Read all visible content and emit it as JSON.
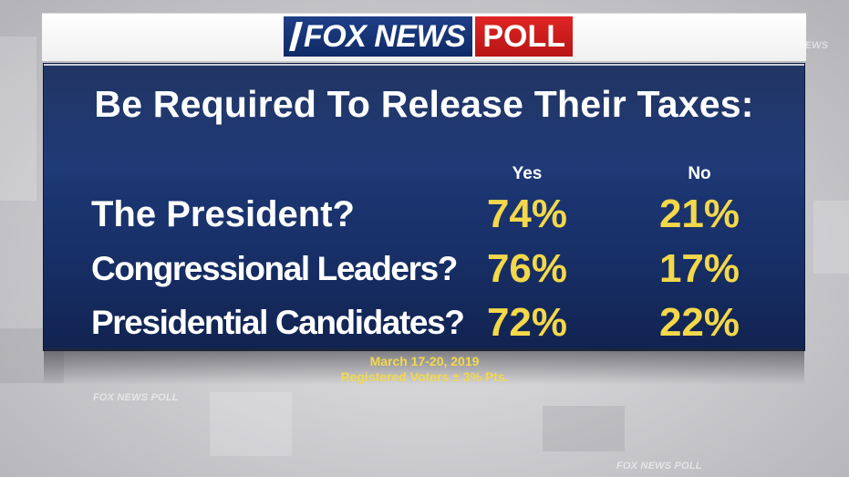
{
  "brand": {
    "logo_main": "FOX NEWS",
    "logo_poll": "POLL",
    "ghost_logo_1": "FOX NEWS POLL",
    "ghost_logo_2": "FOX NEWS POLL",
    "ghost_logo_3": "FOX NEWS POLL",
    "colors": {
      "navy": "#1c3775",
      "red": "#c81a1a",
      "gold": "#f3d84a"
    }
  },
  "chart_data": {
    "type": "table",
    "title": "Be Required To Release Their Taxes:",
    "columns": [
      "Yes",
      "No"
    ],
    "rows": [
      {
        "label": "The President?",
        "yes": "74%",
        "no": "21%"
      },
      {
        "label": "Congressional Leaders?",
        "yes": "76%",
        "no": "17%"
      },
      {
        "label": "Presidential Candidates?",
        "yes": "72%",
        "no": "22%"
      }
    ],
    "values": {
      "yes": [
        74,
        76,
        72
      ],
      "no": [
        21,
        17,
        22
      ]
    }
  },
  "footer": {
    "date": "March 17-20, 2019",
    "sample": "Registered Voters ± 3% Pts."
  }
}
